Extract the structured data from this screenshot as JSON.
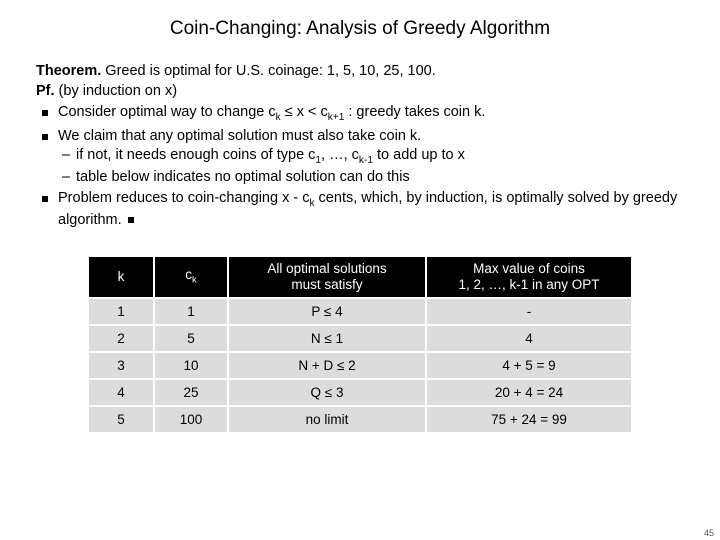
{
  "title": "Coin-Changing:  Analysis of Greedy Algorithm",
  "theorem_label": "Theorem.",
  "theorem_text": "  Greed is optimal for U.S. coinage:  1, 5, 10, 25, 100.",
  "pf_label": "Pf.",
  "pf_text": "  (by induction on x)",
  "bullets": {
    "b1_a": "Consider optimal way to change c",
    "b1_b": " ≤ x < c",
    "b1_c": " :   greedy takes coin k.",
    "b2": "We claim that any optimal solution must also take coin k.",
    "b2s1_a": "if not, it needs enough coins of type c",
    "b2s1_b": ", …, c",
    "b2s1_c": "  to add up to x",
    "b2s2": "table below indicates no optimal solution can do this",
    "b3_a": "Problem reduces to coin-changing x - c",
    "b3_b": " cents, which, by induction, is optimally solved by greedy algorithm.  "
  },
  "sub_k": "k",
  "sub_kp1": "k+1",
  "sub_1": "1",
  "sub_km1": "k-1",
  "table": {
    "headers": {
      "k": "k",
      "ck_c": "c",
      "opt_l1": "All optimal solutions",
      "opt_l2": "must satisfy",
      "max_l1": "Max value of coins",
      "max_l2": "1, 2, …, k-1 in any OPT"
    },
    "rows": [
      {
        "k": "1",
        "ck": "1",
        "opt": "P ≤ 4",
        "max": "-"
      },
      {
        "k": "2",
        "ck": "5",
        "opt": "N ≤ 1",
        "max": "4"
      },
      {
        "k": "3",
        "ck": "10",
        "opt": "N + D ≤ 2",
        "max": "4 + 5 = 9"
      },
      {
        "k": "4",
        "ck": "25",
        "opt": "Q ≤ 3",
        "max": "20 + 4 = 24"
      },
      {
        "k": "5",
        "ck": "100",
        "opt": "no limit",
        "max": "75 + 24 = 99"
      }
    ]
  },
  "pagenum": "45"
}
